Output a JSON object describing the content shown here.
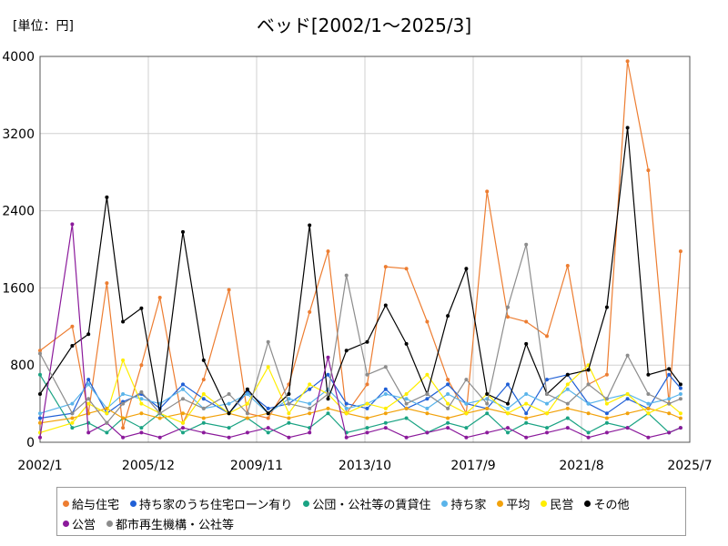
{
  "header": {
    "unit": "[単位：円]"
  },
  "chart_data": {
    "type": "line",
    "title": "ベッド[2002/1～2025/3]",
    "xlabel": "",
    "ylabel": "",
    "ylim": [
      0,
      4000
    ],
    "y_ticks": [
      "0",
      "800",
      "1600",
      "2400",
      "3200",
      "4000"
    ],
    "x_ticks": [
      "2002/1",
      "2005/12",
      "2009/11",
      "2013/10",
      "2017/9",
      "2021/8",
      "2025/7"
    ],
    "x_range": [
      "2002/1",
      "2025/7"
    ],
    "grid": true,
    "legend_position": "bottom",
    "x": [
      "2002/1",
      "2003/3",
      "2003/10",
      "2004/6",
      "2005/1",
      "2005/9",
      "2006/5",
      "2007/3",
      "2007/12",
      "2008/11",
      "2009/7",
      "2010/4",
      "2011/1",
      "2011/10",
      "2012/6",
      "2013/2",
      "2013/11",
      "2014/7",
      "2015/4",
      "2016/1",
      "2016/10",
      "2017/6",
      "2018/3",
      "2018/12",
      "2019/8",
      "2020/5",
      "2021/2",
      "2021/11",
      "2022/7",
      "2023/4",
      "2024/1",
      "2024/10",
      "2025/3"
    ],
    "series": [
      {
        "name": "給与住宅",
        "color": "#ed7d31",
        "values": [
          950,
          1200,
          300,
          1650,
          150,
          800,
          1500,
          200,
          650,
          1580,
          300,
          250,
          600,
          1350,
          1980,
          300,
          600,
          1820,
          1800,
          1250,
          650,
          300,
          2600,
          1300,
          1250,
          1100,
          1830,
          600,
          700,
          3950,
          2820,
          400,
          1980
        ]
      },
      {
        "name": "持ち家のうち住宅ローン有り",
        "color": "#1f5fd6",
        "values": [
          250,
          300,
          650,
          300,
          420,
          500,
          350,
          600,
          450,
          300,
          520,
          350,
          400,
          550,
          700,
          400,
          350,
          550,
          350,
          450,
          600,
          400,
          350,
          600,
          300,
          650,
          700,
          400,
          300,
          450,
          350,
          700,
          560
        ]
      },
      {
        "name": "公団・公社等の賃貸住",
        "color": "#1aa383",
        "values": [
          700,
          150,
          200,
          100,
          250,
          150,
          300,
          100,
          200,
          150,
          250,
          100,
          200,
          150,
          300,
          100,
          150,
          200,
          250,
          100,
          200,
          150,
          300,
          100,
          200,
          150,
          250,
          100,
          200,
          150,
          300,
          100,
          150
        ]
      },
      {
        "name": "持ち家",
        "color": "#5ab4ea",
        "values": [
          300,
          400,
          600,
          350,
          500,
          450,
          400,
          550,
          350,
          400,
          500,
          300,
          450,
          400,
          550,
          350,
          400,
          500,
          450,
          350,
          500,
          400,
          450,
          350,
          500,
          400,
          550,
          400,
          450,
          500,
          400,
          450,
          500
        ]
      },
      {
        "name": "平均",
        "color": "#f2a20c",
        "values": [
          200,
          250,
          300,
          350,
          250,
          300,
          250,
          300,
          250,
          300,
          250,
          300,
          250,
          300,
          350,
          300,
          250,
          300,
          350,
          300,
          250,
          300,
          350,
          300,
          250,
          300,
          350,
          300,
          250,
          300,
          350,
          300,
          250
        ]
      },
      {
        "name": "民営",
        "color": "#ffee00",
        "values": [
          100,
          200,
          400,
          300,
          850,
          400,
          300,
          200,
          500,
          300,
          400,
          780,
          300,
          600,
          500,
          300,
          400,
          350,
          500,
          700,
          400,
          300,
          500,
          300,
          400,
          300,
          600,
          800,
          400,
          500,
          300,
          400,
          300
        ]
      },
      {
        "name": "その他",
        "color": "#000000",
        "values": [
          500,
          1000,
          1120,
          2540,
          1250,
          1390,
          300,
          2180,
          850,
          300,
          550,
          300,
          500,
          2250,
          450,
          950,
          1040,
          1420,
          1020,
          500,
          1310,
          1800,
          500,
          400,
          1020,
          500,
          700,
          750,
          1400,
          3260,
          700,
          760,
          600
        ]
      },
      {
        "name": "公営",
        "color": "#8b1a9b",
        "values": [
          50,
          2260,
          100,
          200,
          50,
          100,
          50,
          150,
          100,
          50,
          100,
          150,
          50,
          100,
          880,
          50,
          100,
          150,
          50,
          100,
          150,
          50,
          100,
          150,
          50,
          100,
          150,
          50,
          100,
          150,
          50,
          100,
          150
        ]
      },
      {
        "name": "都市再生機構・公社等",
        "color": "#8c8c8c",
        "values": [
          920,
          300,
          450,
          200,
          400,
          520,
          300,
          450,
          350,
          500,
          300,
          1040,
          400,
          350,
          500,
          1730,
          700,
          780,
          400,
          500,
          350,
          650,
          400,
          1400,
          2050,
          500,
          400,
          600,
          450,
          900,
          500,
          400,
          450
        ]
      }
    ]
  }
}
